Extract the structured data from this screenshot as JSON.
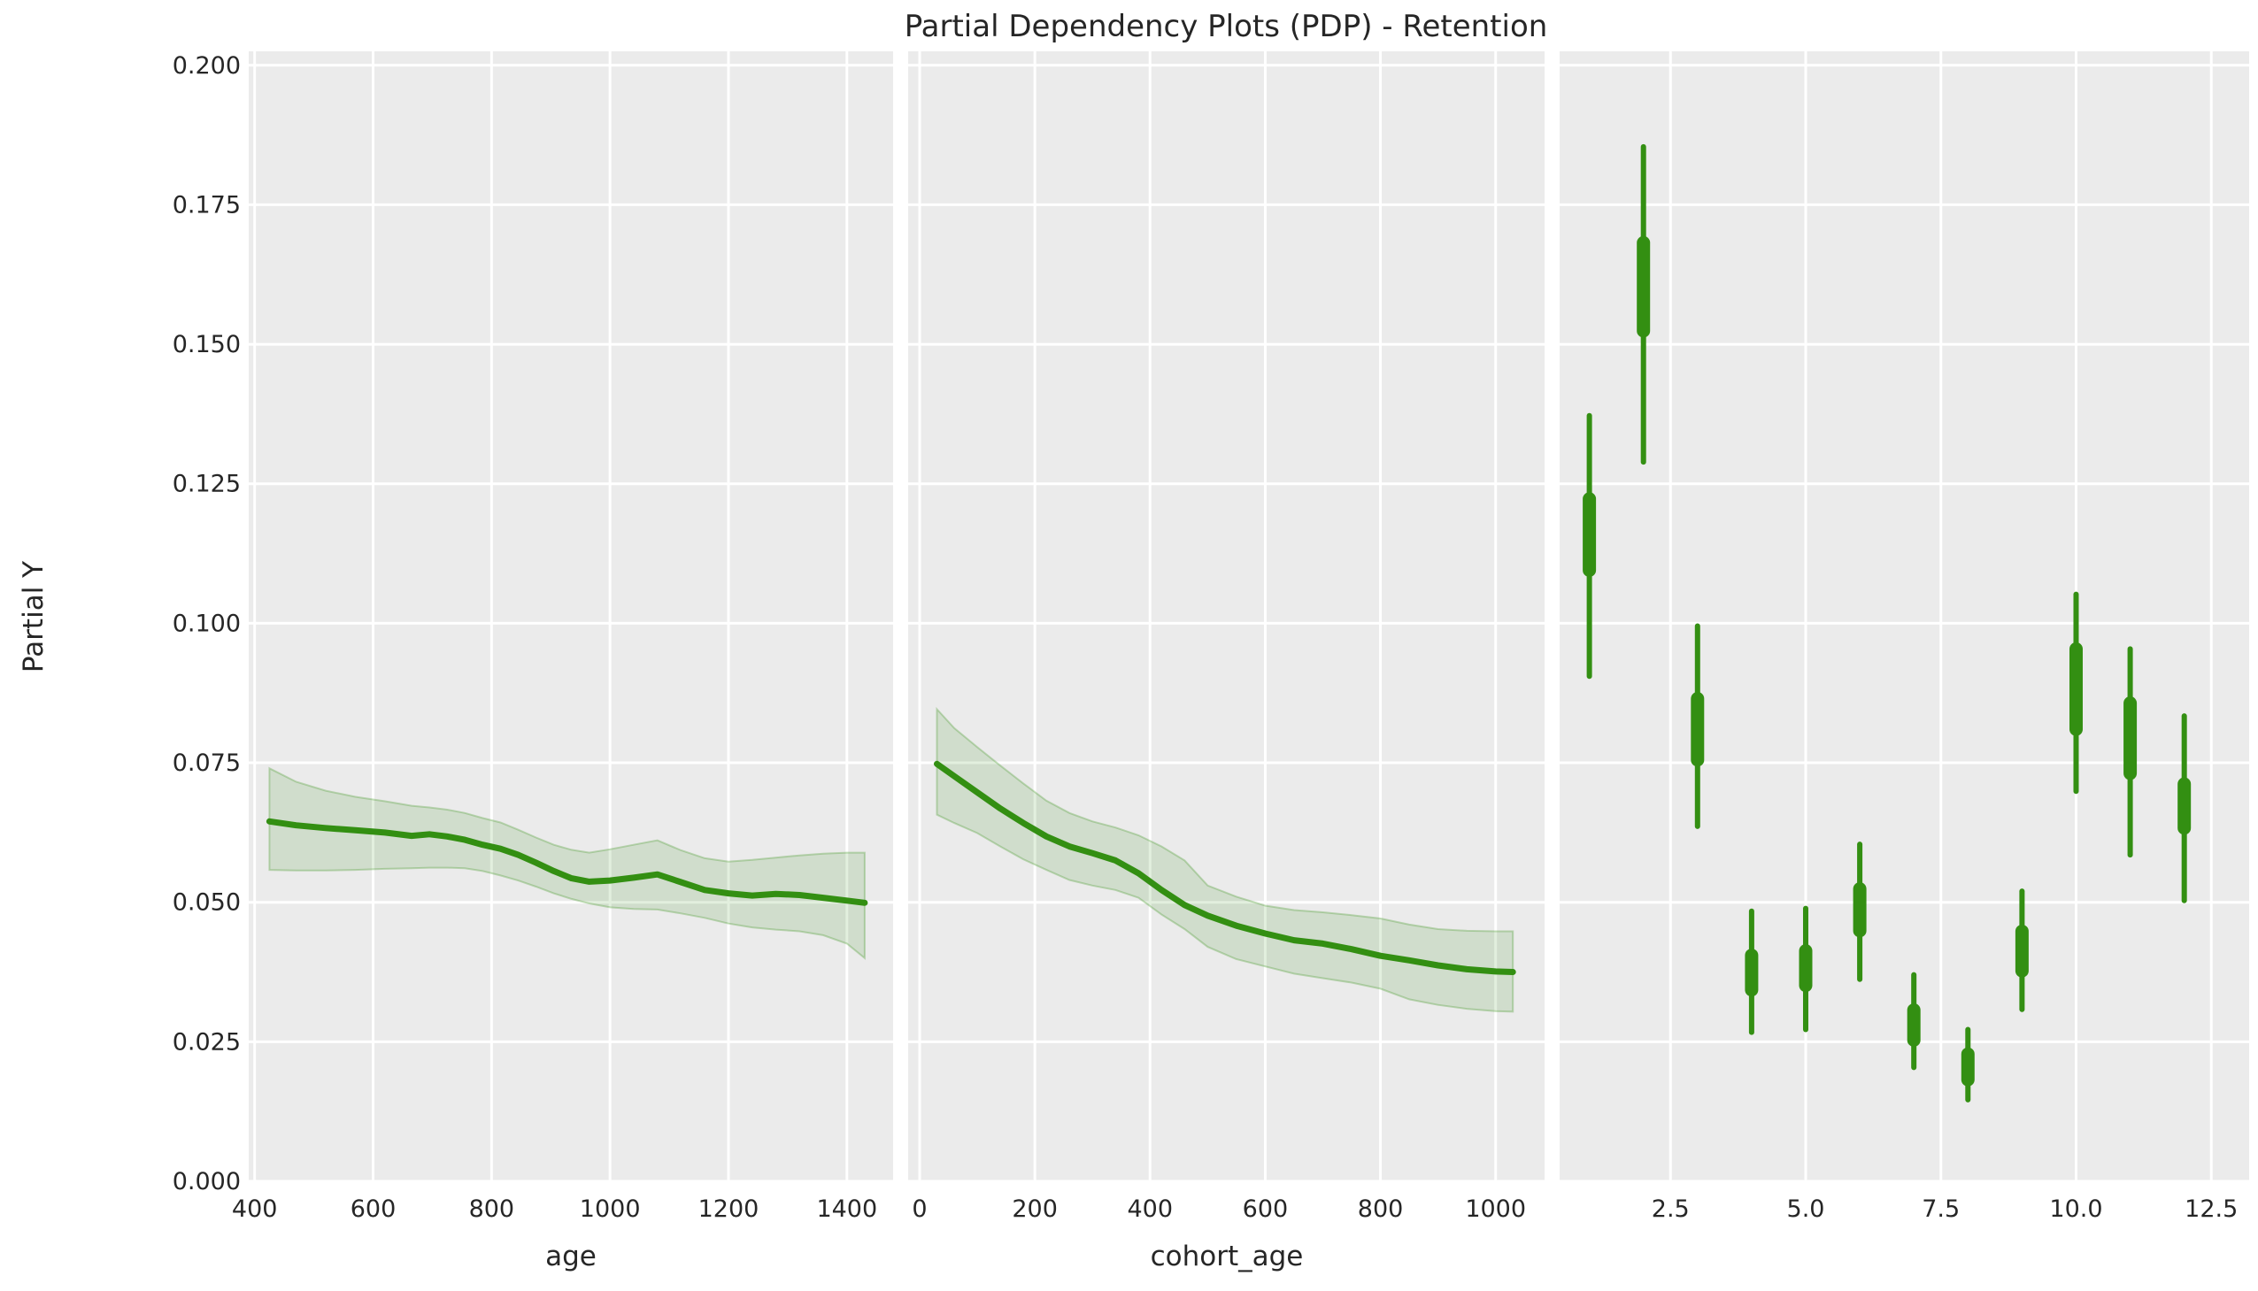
{
  "title": "Partial Dependency Plots (PDP) - Retention",
  "ylabel": "Partial Y",
  "colors": {
    "green_line": "#338f12",
    "band_fill": "#338f12",
    "band_fill_opacity": 0.14,
    "band_edge_opacity": 0.28,
    "axes_background": "#ebebeb",
    "gridline": "#ffffff",
    "figure_background": "#ffffff",
    "text": "#262626"
  },
  "y_axis": {
    "tick_values": [
      0.0,
      0.025,
      0.05,
      0.075,
      0.1,
      0.125,
      0.15,
      0.175,
      0.2
    ],
    "tick_labels": [
      "0.000",
      "0.025",
      "0.050",
      "0.075",
      "0.100",
      "0.125",
      "0.150",
      "0.175",
      "0.200"
    ],
    "ylim": [
      0,
      0.2025
    ]
  },
  "chart_data": [
    {
      "type": "line",
      "title": "",
      "xlabel": "age",
      "ylabel": "Partial Y",
      "grid": true,
      "legend": "none",
      "xlim": [
        390,
        1478
      ],
      "ylim": [
        0,
        0.2025
      ],
      "xtick_values": [
        400,
        600,
        800,
        1000,
        1200,
        1400
      ],
      "xtick_labels": [
        "400",
        "600",
        "800",
        "1000",
        "1200",
        "1400"
      ],
      "x": [
        425,
        470,
        520,
        570,
        620,
        665,
        695,
        725,
        755,
        785,
        815,
        845,
        875,
        905,
        935,
        965,
        1000,
        1040,
        1080,
        1120,
        1160,
        1200,
        1240,
        1280,
        1320,
        1360,
        1400,
        1430
      ],
      "y": [
        0.0645,
        0.0638,
        0.0633,
        0.0629,
        0.0625,
        0.0619,
        0.0622,
        0.0618,
        0.0612,
        0.0603,
        0.0596,
        0.0585,
        0.0571,
        0.0556,
        0.0543,
        0.0537,
        0.0539,
        0.0544,
        0.055,
        0.0536,
        0.0522,
        0.0516,
        0.0512,
        0.0515,
        0.0513,
        0.0508,
        0.0503,
        0.0499
      ],
      "band_upper": [
        0.074,
        0.0716,
        0.07,
        0.0689,
        0.0681,
        0.0673,
        0.067,
        0.0666,
        0.066,
        0.0651,
        0.0643,
        0.063,
        0.0616,
        0.0603,
        0.0594,
        0.0589,
        0.0595,
        0.0603,
        0.0611,
        0.0593,
        0.0579,
        0.0573,
        0.0576,
        0.058,
        0.0584,
        0.0587,
        0.0589,
        0.0589
      ],
      "band_lower": [
        0.0558,
        0.0557,
        0.0557,
        0.0558,
        0.056,
        0.0561,
        0.0562,
        0.0562,
        0.0561,
        0.0556,
        0.0548,
        0.0539,
        0.0528,
        0.0516,
        0.0506,
        0.0498,
        0.0491,
        0.0488,
        0.0487,
        0.048,
        0.0472,
        0.0462,
        0.0455,
        0.0451,
        0.0448,
        0.0441,
        0.0426,
        0.04
      ]
    },
    {
      "type": "line",
      "title": "",
      "xlabel": "cohort_age",
      "ylabel": "",
      "grid": true,
      "legend": "none",
      "xlim": [
        -20,
        1085
      ],
      "ylim": [
        0,
        0.2025
      ],
      "xtick_values": [
        0,
        200,
        400,
        600,
        800,
        1000
      ],
      "xtick_labels": [
        "0",
        "200",
        "400",
        "600",
        "800",
        "1000"
      ],
      "x": [
        30,
        60,
        100,
        140,
        180,
        220,
        260,
        300,
        340,
        380,
        420,
        460,
        500,
        550,
        600,
        650,
        700,
        750,
        800,
        850,
        900,
        950,
        1000,
        1030
      ],
      "y": [
        0.0748,
        0.0726,
        0.0697,
        0.0668,
        0.0642,
        0.0618,
        0.06,
        0.0588,
        0.0575,
        0.0552,
        0.0522,
        0.0495,
        0.0476,
        0.0458,
        0.0444,
        0.0432,
        0.0426,
        0.0416,
        0.0404,
        0.0396,
        0.0387,
        0.038,
        0.0376,
        0.0375
      ],
      "band_upper": [
        0.0846,
        0.0812,
        0.0778,
        0.0745,
        0.0713,
        0.0682,
        0.066,
        0.0645,
        0.0634,
        0.062,
        0.06,
        0.0575,
        0.053,
        0.051,
        0.0494,
        0.0486,
        0.0482,
        0.0477,
        0.0471,
        0.046,
        0.0452,
        0.0449,
        0.0448,
        0.0448
      ],
      "band_lower": [
        0.0657,
        0.0642,
        0.0624,
        0.06,
        0.0577,
        0.0558,
        0.054,
        0.053,
        0.0522,
        0.0508,
        0.0478,
        0.0452,
        0.042,
        0.0398,
        0.0385,
        0.0372,
        0.0364,
        0.0356,
        0.0345,
        0.0326,
        0.0316,
        0.0309,
        0.0305,
        0.0304
      ]
    },
    {
      "type": "interval",
      "title": "",
      "xlabel": "",
      "ylabel": "",
      "grid": true,
      "legend": "none",
      "xlim": [
        0.45,
        13.2
      ],
      "ylim": [
        0,
        0.2025
      ],
      "xtick_values": [
        2.5,
        5.0,
        7.5,
        10.0,
        12.5
      ],
      "xtick_labels": [
        "2.5",
        "5.0",
        "7.5",
        "10.0",
        "12.5"
      ],
      "points": [
        {
          "x": 1,
          "whisker_low": 0.0905,
          "whisker_high": 0.1372,
          "box_low": 0.1095,
          "box_high": 0.1223
        },
        {
          "x": 2,
          "whisker_low": 0.1289,
          "whisker_high": 0.1854,
          "box_low": 0.1524,
          "box_high": 0.1682
        },
        {
          "x": 3,
          "whisker_low": 0.0636,
          "whisker_high": 0.0995,
          "box_low": 0.0755,
          "box_high": 0.0865
        },
        {
          "x": 4,
          "whisker_low": 0.0267,
          "whisker_high": 0.0484,
          "box_low": 0.0343,
          "box_high": 0.0405
        },
        {
          "x": 5,
          "whisker_low": 0.0272,
          "whisker_high": 0.0489,
          "box_low": 0.0351,
          "box_high": 0.0413
        },
        {
          "x": 6,
          "whisker_low": 0.0362,
          "whisker_high": 0.0604,
          "box_low": 0.0449,
          "box_high": 0.0524
        },
        {
          "x": 7,
          "whisker_low": 0.0204,
          "whisker_high": 0.037,
          "box_low": 0.0253,
          "box_high": 0.0307
        },
        {
          "x": 8,
          "whisker_low": 0.0146,
          "whisker_high": 0.0272,
          "box_low": 0.0182,
          "box_high": 0.0228
        },
        {
          "x": 9,
          "whisker_low": 0.0308,
          "whisker_high": 0.052,
          "box_low": 0.0377,
          "box_high": 0.0448
        },
        {
          "x": 10,
          "whisker_low": 0.0699,
          "whisker_high": 0.1052,
          "box_low": 0.081,
          "box_high": 0.0954
        },
        {
          "x": 11,
          "whisker_low": 0.0585,
          "whisker_high": 0.0954,
          "box_low": 0.0731,
          "box_high": 0.0857
        },
        {
          "x": 12,
          "whisker_low": 0.0503,
          "whisker_high": 0.0834,
          "box_low": 0.0633,
          "box_high": 0.0712
        }
      ]
    }
  ]
}
